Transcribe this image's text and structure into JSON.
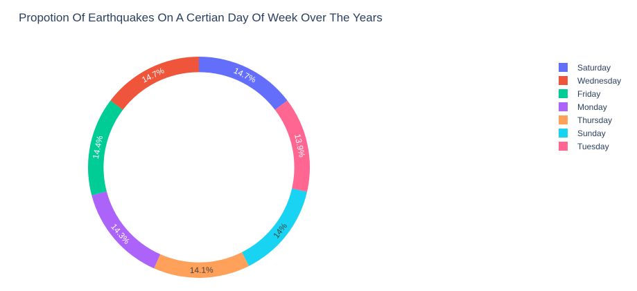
{
  "chart_data": {
    "type": "pie",
    "hole": 0.86,
    "title": "Propotion Of Earthquakes On A Certian Day Of Week Over The Years",
    "legend_position": "right",
    "slices": [
      {
        "label": "Saturday",
        "percent_label": "14.7%",
        "value": 14.7,
        "color": "#636efa"
      },
      {
        "label": "Tuesday",
        "percent_label": "13.9%",
        "value": 13.9,
        "color": "#ff6692"
      },
      {
        "label": "Sunday",
        "percent_label": "14%",
        "value": 14.0,
        "color": "#19d3f3"
      },
      {
        "label": "Thursday",
        "percent_label": "14.1%",
        "value": 14.1,
        "color": "#ffa15a"
      },
      {
        "label": "Monday",
        "percent_label": "14.3%",
        "value": 14.3,
        "color": "#ab63fa"
      },
      {
        "label": "Friday",
        "percent_label": "14.4%",
        "value": 14.4,
        "color": "#00cc96"
      },
      {
        "label": "Wednesday",
        "percent_label": "14.7%",
        "value": 14.7,
        "color": "#ef553b"
      }
    ],
    "legend": [
      {
        "label": "Saturday",
        "color": "#636efa"
      },
      {
        "label": "Wednesday",
        "color": "#ef553b"
      },
      {
        "label": "Friday",
        "color": "#00cc96"
      },
      {
        "label": "Monday",
        "color": "#ab63fa"
      },
      {
        "label": "Thursday",
        "color": "#ffa15a"
      },
      {
        "label": "Sunday",
        "color": "#19d3f3"
      },
      {
        "label": "Tuesday",
        "color": "#ff6692"
      }
    ]
  }
}
